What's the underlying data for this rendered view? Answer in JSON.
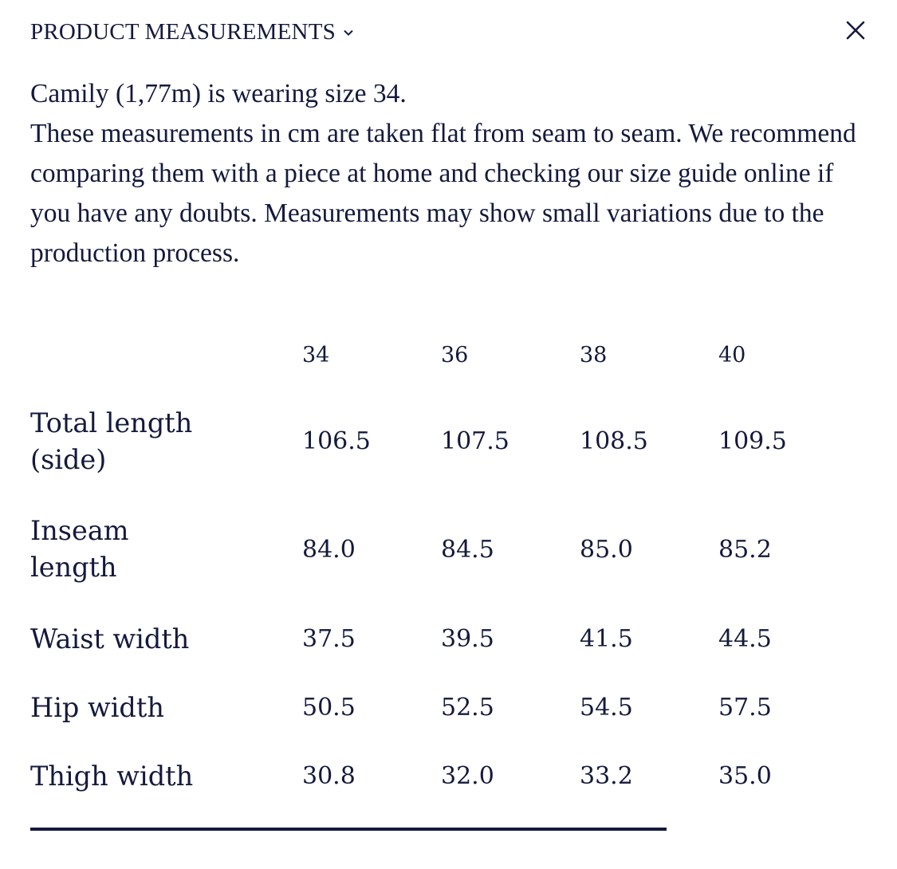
{
  "header": {
    "title": "PRODUCT MEASUREMENTS",
    "chevron_icon": "chevron-down-icon",
    "close_icon": "close-icon"
  },
  "intro": {
    "model_line": "Camily (1,77m) is wearing size 34.",
    "description": "These measurements in cm are taken flat from seam to seam. We recommend comparing them with a piece at home and checking our size guide online if you have any doubts. Measurements may show small variations due to the production process."
  },
  "table": {
    "sizes": [
      "34",
      "36",
      "38",
      "40"
    ],
    "rows": [
      {
        "label_line1": "Total length",
        "label_line2": "(side)",
        "values": [
          "106.5",
          "107.5",
          "108.5",
          "109.5"
        ]
      },
      {
        "label_line1": "Inseam",
        "label_line2": "length",
        "values": [
          "84.0",
          "84.5",
          "85.0",
          "85.2"
        ]
      },
      {
        "label_line1": "Waist width",
        "label_line2": "",
        "values": [
          "37.5",
          "39.5",
          "41.5",
          "44.5"
        ]
      },
      {
        "label_line1": "Hip width",
        "label_line2": "",
        "values": [
          "50.5",
          "52.5",
          "54.5",
          "57.5"
        ]
      },
      {
        "label_line1": "Thigh width",
        "label_line2": "",
        "values": [
          "30.8",
          "32.0",
          "33.2",
          "35.0"
        ]
      }
    ]
  },
  "colors": {
    "text": "#141a3c",
    "background": "#ffffff"
  }
}
